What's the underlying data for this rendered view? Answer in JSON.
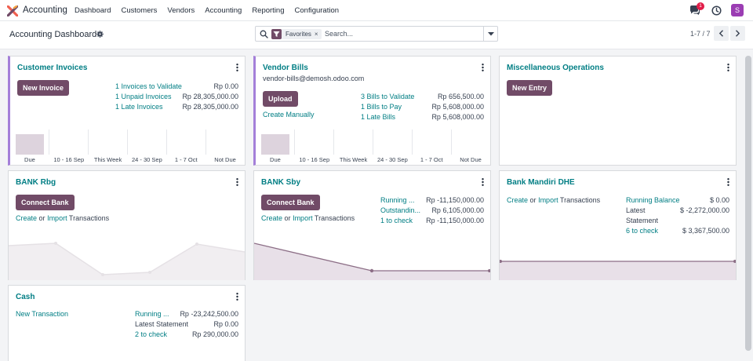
{
  "topbar": {
    "app_name": "Accounting",
    "menu": [
      "Dashboard",
      "Customers",
      "Vendors",
      "Accounting",
      "Reporting",
      "Configuration"
    ],
    "notifications": "1",
    "avatar_letter": "S"
  },
  "control": {
    "title": "Accounting Dashboard",
    "facet": "Favorites",
    "facet_remove": "×",
    "search_placeholder": "Search...",
    "pager": "1-7 / 7"
  },
  "bar_labels": [
    "Due",
    "10 - 16 Sep",
    "This Week",
    "24 - 30 Sep",
    "1 - 7 Oct",
    "Not Due"
  ],
  "cards": {
    "customer_invoices": {
      "title": "Customer Invoices",
      "button": "New Invoice",
      "rows": [
        {
          "label": "1 Invoices to Validate",
          "value": "Rp 0.00"
        },
        {
          "label": "1 Unpaid Invoices",
          "value": "Rp 28,305,000.00"
        },
        {
          "label": "1 Late Invoices",
          "value": "Rp 28,305,000.00"
        }
      ]
    },
    "vendor_bills": {
      "title": "Vendor Bills",
      "email": "vendor-bills@demosh.odoo.com",
      "button": "Upload",
      "create_manually": "Create Manually",
      "rows": [
        {
          "label": "3 Bills to Validate",
          "value": "Rp 656,500.00"
        },
        {
          "label": "1 Bills to Pay",
          "value": "Rp 5,608,000.00"
        },
        {
          "label": "1 Late Bills",
          "value": "Rp 5,608,000.00"
        }
      ]
    },
    "misc": {
      "title": "Miscellaneous Operations",
      "button": "New Entry"
    },
    "bank_rbg": {
      "title": "BANK Rbg",
      "button": "Connect Bank",
      "create": "Create",
      "or": "or",
      "import": "Import",
      "transactions": "Transactions"
    },
    "bank_sby": {
      "title": "BANK Sby",
      "button": "Connect Bank",
      "create": "Create",
      "or": "or",
      "import": "Import",
      "transactions": "Transactions",
      "rows": [
        {
          "label": "Running ...",
          "value": "Rp -11,150,000.00"
        },
        {
          "label": "Outstandin...",
          "value": "Rp 6,105,000.00"
        },
        {
          "label": "1 to check",
          "value": "Rp -11,150,000.00"
        }
      ]
    },
    "bank_mandiri": {
      "title": "Bank Mandiri DHE",
      "create": "Create",
      "or": "or",
      "import": "Import",
      "transactions": "Transactions",
      "running_balance": "Running Balance",
      "running_balance_value": "$ 0.00",
      "latest": "Latest",
      "statement": "Statement",
      "latest_value": "$ -2,272,000.00",
      "to_check": "6 to check",
      "to_check_value": "$ 3,367,500.00"
    },
    "cash": {
      "title": "Cash",
      "new_transaction": "New Transaction",
      "rows": [
        {
          "label": "Running ...",
          "value": "Rp -23,242,500.00"
        },
        {
          "label": "Latest Statement",
          "value": "Rp 0.00"
        },
        {
          "label": "2 to check",
          "value": "Rp 290,000.00"
        }
      ]
    }
  },
  "colors": {
    "primary": "#714b67",
    "link": "#017e84",
    "accent_border": "#a47fd9",
    "chart_fill": "#e8e0e8",
    "chart_line": "#8c6e86"
  }
}
